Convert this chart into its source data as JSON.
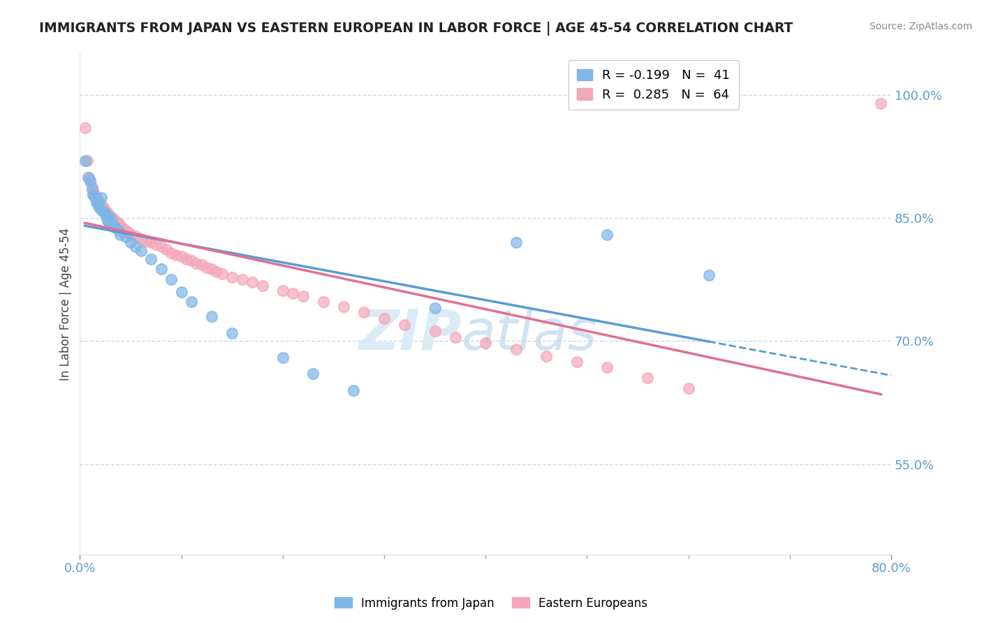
{
  "title": "IMMIGRANTS FROM JAPAN VS EASTERN EUROPEAN IN LABOR FORCE | AGE 45-54 CORRELATION CHART",
  "source": "Source: ZipAtlas.com",
  "ylabel": "In Labor Force | Age 45-54",
  "xlim": [
    0.0,
    0.8
  ],
  "ylim": [
    0.44,
    1.05
  ],
  "yticks": [
    0.55,
    0.7,
    0.85,
    1.0
  ],
  "ytick_labels": [
    "55.0%",
    "70.0%",
    "85.0%",
    "100.0%"
  ],
  "xtick_labels": [
    "0.0%",
    "80.0%"
  ],
  "xticks": [
    0.0,
    0.8
  ],
  "legend_japan": "R = -0.199   N =  41",
  "legend_eastern": "R =  0.285   N =  64",
  "japan_color": "#7EB6E8",
  "eastern_color": "#F4A7B9",
  "japan_line_color": "#5B9BD5",
  "eastern_line_color": "#E07090",
  "japan_scatter_x": [
    0.005,
    0.008,
    0.01,
    0.012,
    0.013,
    0.015,
    0.016,
    0.017,
    0.018,
    0.02,
    0.021,
    0.022,
    0.023,
    0.025,
    0.026,
    0.027,
    0.028,
    0.03,
    0.032,
    0.033,
    0.035,
    0.038,
    0.04,
    0.045,
    0.05,
    0.055,
    0.06,
    0.07,
    0.08,
    0.09,
    0.1,
    0.11,
    0.13,
    0.15,
    0.2,
    0.23,
    0.27,
    0.35,
    0.43,
    0.52,
    0.62
  ],
  "japan_scatter_y": [
    0.92,
    0.9,
    0.895,
    0.885,
    0.878,
    0.875,
    0.87,
    0.868,
    0.865,
    0.862,
    0.875,
    0.86,
    0.858,
    0.855,
    0.852,
    0.848,
    0.845,
    0.85,
    0.843,
    0.84,
    0.838,
    0.835,
    0.83,
    0.827,
    0.82,
    0.815,
    0.81,
    0.8,
    0.788,
    0.775,
    0.76,
    0.748,
    0.73,
    0.71,
    0.68,
    0.66,
    0.64,
    0.74,
    0.82,
    0.83,
    0.78
  ],
  "eastern_scatter_x": [
    0.005,
    0.007,
    0.009,
    0.01,
    0.012,
    0.013,
    0.015,
    0.017,
    0.018,
    0.02,
    0.022,
    0.024,
    0.026,
    0.028,
    0.03,
    0.032,
    0.034,
    0.036,
    0.038,
    0.04,
    0.042,
    0.045,
    0.048,
    0.05,
    0.055,
    0.06,
    0.065,
    0.07,
    0.075,
    0.08,
    0.085,
    0.09,
    0.095,
    0.1,
    0.105,
    0.11,
    0.115,
    0.12,
    0.125,
    0.13,
    0.135,
    0.14,
    0.15,
    0.16,
    0.17,
    0.18,
    0.2,
    0.21,
    0.22,
    0.24,
    0.26,
    0.28,
    0.3,
    0.32,
    0.35,
    0.37,
    0.4,
    0.43,
    0.46,
    0.49,
    0.52,
    0.56,
    0.6,
    0.79
  ],
  "eastern_scatter_y": [
    0.96,
    0.92,
    0.9,
    0.895,
    0.888,
    0.882,
    0.878,
    0.875,
    0.87,
    0.868,
    0.865,
    0.862,
    0.858,
    0.855,
    0.852,
    0.85,
    0.848,
    0.845,
    0.843,
    0.84,
    0.838,
    0.835,
    0.832,
    0.83,
    0.828,
    0.825,
    0.822,
    0.82,
    0.818,
    0.815,
    0.812,
    0.808,
    0.805,
    0.803,
    0.8,
    0.798,
    0.795,
    0.793,
    0.79,
    0.788,
    0.785,
    0.782,
    0.778,
    0.775,
    0.772,
    0.768,
    0.762,
    0.758,
    0.755,
    0.748,
    0.742,
    0.735,
    0.728,
    0.72,
    0.712,
    0.705,
    0.698,
    0.69,
    0.682,
    0.675,
    0.668,
    0.655,
    0.642,
    0.99
  ],
  "watermark_left": "ZIP",
  "watermark_right": "atlas",
  "background_color": "#ffffff",
  "grid_color": "#c8d8f0",
  "axis_color": "#5b9bd5",
  "tick_color": "#5b9bd5"
}
